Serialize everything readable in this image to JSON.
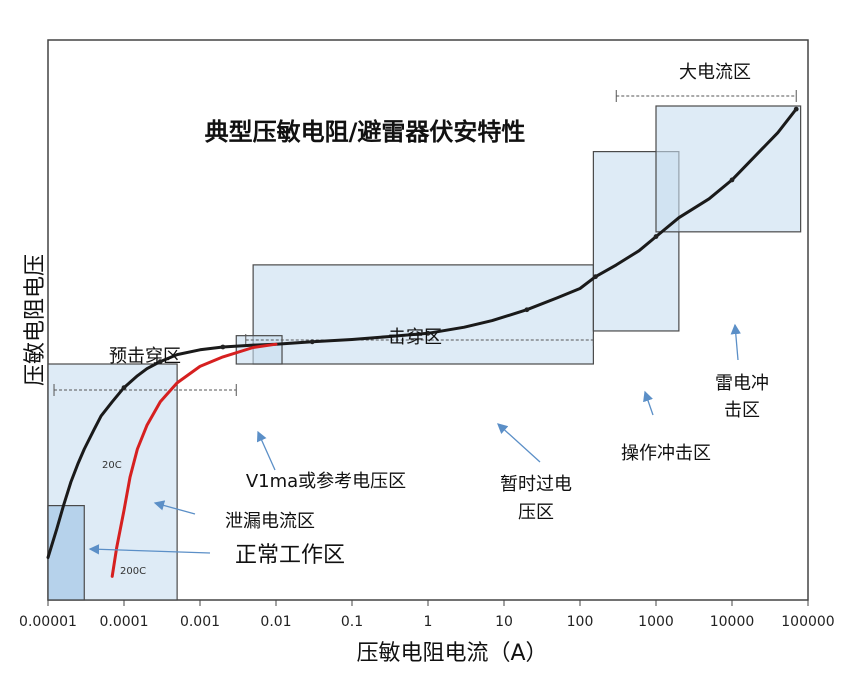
{
  "chart_data": {
    "type": "line",
    "title": "典型压敏电阻/避雷器伏安特性",
    "xlabel": "压敏电阻电流（A）",
    "ylabel": "压敏电阻电压",
    "x_scale": "log",
    "xlim": [
      1e-05,
      100000
    ],
    "x_ticks": [
      {
        "value": 1e-05,
        "label": "0.00001"
      },
      {
        "value": 0.0001,
        "label": "0.0001"
      },
      {
        "value": 0.001,
        "label": "0.001"
      },
      {
        "value": 0.01,
        "label": "0.01"
      },
      {
        "value": 0.1,
        "label": "0.1"
      },
      {
        "value": 1,
        "label": "1"
      },
      {
        "value": 10,
        "label": "10"
      },
      {
        "value": 100,
        "label": "100"
      },
      {
        "value": 1000,
        "label": "1000"
      },
      {
        "value": 10000,
        "label": "10000"
      },
      {
        "value": 100000,
        "label": "100000"
      }
    ],
    "ylim": [
      0,
      100
    ],
    "grid": false,
    "series": [
      {
        "name": "20C",
        "color": "#1a1a1a",
        "x": [
          1e-05,
          1.3e-05,
          1.6e-05,
          2e-05,
          2.5e-05,
          3e-05,
          4e-05,
          5e-05,
          7e-05,
          0.0001,
          0.00015,
          0.0002,
          0.0003,
          0.0005,
          0.001,
          0.002,
          0.005,
          0.01,
          0.03,
          0.1,
          0.3,
          1,
          3,
          7,
          20,
          50,
          100,
          160,
          300,
          600,
          1000,
          2000,
          5000,
          10000,
          20000,
          40000,
          70000
        ],
        "values": [
          9,
          15,
          20,
          25,
          29,
          32,
          36,
          39,
          42,
          45,
          47.5,
          49,
          50.5,
          52,
          53,
          53.6,
          54,
          54.2,
          54.7,
          55.2,
          55.8,
          56.5,
          57.8,
          59.2,
          61.5,
          64,
          66,
          68.5,
          71,
          74,
          77,
          81,
          85,
          89,
          94,
          99,
          104
        ]
      },
      {
        "name": "200C",
        "color": "#d62020",
        "x": [
          7e-05,
          8e-05,
          0.0001,
          0.00012,
          0.00015,
          0.0002,
          0.0003,
          0.0005,
          0.001,
          0.002,
          0.005,
          0.01
        ],
        "values": [
          5,
          11,
          19,
          26,
          32,
          37,
          42,
          46,
          49.5,
          51.5,
          53.5,
          54.2
        ]
      }
    ],
    "regions": [
      {
        "name": "正常工作区",
        "x": [
          1e-05,
          3e-05
        ],
        "y": [
          0,
          20
        ]
      },
      {
        "name": "泄漏电流区",
        "x": [
          1e-05,
          0.0005
        ],
        "y": [
          0,
          50
        ]
      },
      {
        "name": "V1ma或参考电压区",
        "x": [
          0.003,
          0.012
        ],
        "y": [
          50,
          56
        ]
      },
      {
        "name": "暂时过电压区",
        "x": [
          0.005,
          150
        ],
        "y": [
          50,
          71
        ]
      },
      {
        "name": "操作冲击区",
        "x": [
          150,
          2000
        ],
        "y": [
          57,
          95
        ]
      },
      {
        "name": "雷电冲击区",
        "x": [
          1000,
          80000
        ],
        "y": [
          78,
          150
        ]
      }
    ],
    "ranges": [
      {
        "name": "预击穿区",
        "x": [
          1.2e-05,
          0.003
        ]
      },
      {
        "name": "击穿区",
        "x": [
          0.004,
          150
        ]
      },
      {
        "name": "大电流区",
        "x": [
          300,
          70000
        ]
      }
    ],
    "annotations": [
      {
        "text": "正常工作区"
      },
      {
        "text": "泄漏电流区"
      },
      {
        "text": "V1ma或参考电压区"
      },
      {
        "text": "暂时过电",
        "text2": "压区"
      },
      {
        "text": "操作冲击区"
      },
      {
        "text": "雷电冲",
        "text2": "击区"
      },
      {
        "text": "预击穿区"
      },
      {
        "text": "击穿区"
      },
      {
        "text": "大电流区"
      },
      {
        "text": "20C"
      },
      {
        "text": "200C"
      }
    ]
  }
}
